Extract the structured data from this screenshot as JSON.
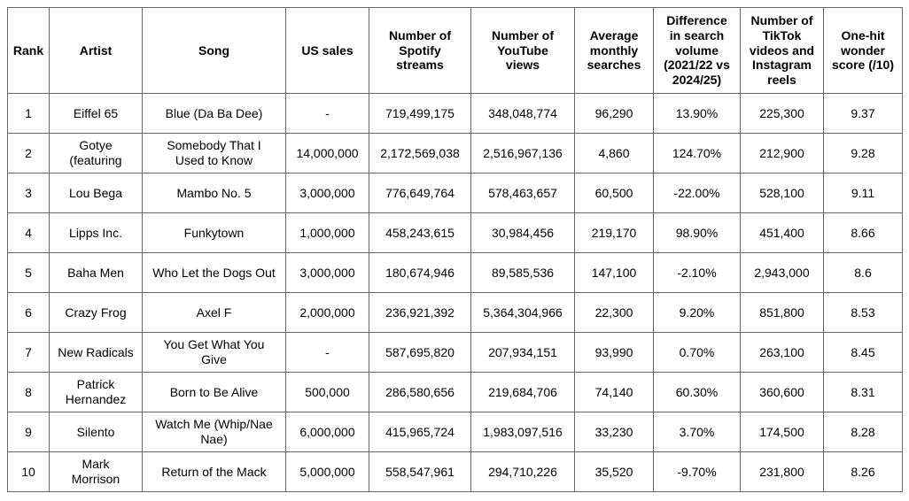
{
  "colors": {
    "border": "#666666",
    "text": "#000000",
    "background": "#ffffff"
  },
  "table": {
    "column_keys": [
      "rank",
      "artist",
      "song",
      "us-sales",
      "spotify-streams",
      "youtube-views",
      "monthly-searches",
      "search-volume-diff",
      "tiktok-instagram-count",
      "one-hit-score"
    ],
    "headers": [
      "Rank",
      "Artist",
      "Song",
      "US sales",
      "Number of\nSpotify\nstreams",
      "Number of\nYouTube\nviews",
      "Average\nmonthly\nsearches",
      "Difference\nin search\nvolume\n(2021/22 vs\n2024/25)",
      "Number of\nTikTok\nvideos and\nInstagram\nreels",
      "One-hit\nwonder\nscore (/10)"
    ],
    "rows": [
      [
        "1",
        "Eiffel 65",
        "Blue (Da Ba Dee)",
        "-",
        "719,499,175",
        "348,048,774",
        "96,290",
        "13.90%",
        "225,300",
        "9.37"
      ],
      [
        "2",
        "Gotye\n(featuring",
        "Somebody That I\nUsed to Know",
        "14,000,000",
        "2,172,569,038",
        "2,516,967,136",
        "4,860",
        "124.70%",
        "212,900",
        "9.28"
      ],
      [
        "3",
        "Lou Bega",
        "Mambo No. 5",
        "3,000,000",
        "776,649,764",
        "578,463,657",
        "60,500",
        "-22.00%",
        "528,100",
        "9.11"
      ],
      [
        "4",
        "Lipps Inc.",
        "Funkytown",
        "1,000,000",
        "458,243,615",
        "30,984,456",
        "219,170",
        "98.90%",
        "451,400",
        "8.66"
      ],
      [
        "5",
        "Baha Men",
        "Who Let the Dogs Out",
        "3,000,000",
        "180,674,946",
        "89,585,536",
        "147,100",
        "-2.10%",
        "2,943,000",
        "8.6"
      ],
      [
        "6",
        "Crazy Frog",
        "Axel F",
        "2,000,000",
        "236,921,392",
        "5,364,304,966",
        "22,300",
        "9.20%",
        "851,800",
        "8.53"
      ],
      [
        "7",
        "New Radicals",
        "You Get What You\nGive",
        "-",
        "587,695,820",
        "207,934,151",
        "93,990",
        "0.70%",
        "263,100",
        "8.45"
      ],
      [
        "8",
        "Patrick\nHernandez",
        "Born to Be Alive",
        "500,000",
        "286,580,656",
        "219,684,706",
        "74,140",
        "60.30%",
        "360,600",
        "8.31"
      ],
      [
        "9",
        "Silento",
        "Watch Me (Whip/Nae\nNae)",
        "6,000,000",
        "415,965,724",
        "1,983,097,516",
        "33,230",
        "3.70%",
        "174,500",
        "8.28"
      ],
      [
        "10",
        "Mark\nMorrison",
        "Return of the Mack",
        "5,000,000",
        "558,547,961",
        "294,710,226",
        "35,520",
        "-9.70%",
        "231,800",
        "8.26"
      ]
    ]
  },
  "chart_data": {
    "type": "table",
    "columns": [
      "Rank",
      "Artist",
      "Song",
      "US sales",
      "Number of Spotify streams",
      "Number of YouTube views",
      "Average monthly searches",
      "Difference in search volume (2021/22 vs 2024/25)",
      "Number of TikTok videos and Instagram reels",
      "One-hit wonder score (/10)"
    ],
    "rows": [
      [
        1,
        "Eiffel 65",
        "Blue (Da Ba Dee)",
        null,
        719499175,
        348048774,
        96290,
        "13.90%",
        225300,
        9.37
      ],
      [
        2,
        "Gotye (featuring",
        "Somebody That I Used to Know",
        14000000,
        2172569038,
        2516967136,
        4860,
        "124.70%",
        212900,
        9.28
      ],
      [
        3,
        "Lou Bega",
        "Mambo No. 5",
        3000000,
        776649764,
        578463657,
        60500,
        "-22.00%",
        528100,
        9.11
      ],
      [
        4,
        "Lipps Inc.",
        "Funkytown",
        1000000,
        458243615,
        30984456,
        219170,
        "98.90%",
        451400,
        8.66
      ],
      [
        5,
        "Baha Men",
        "Who Let the Dogs Out",
        3000000,
        180674946,
        89585536,
        147100,
        "-2.10%",
        2943000,
        8.6
      ],
      [
        6,
        "Crazy Frog",
        "Axel F",
        2000000,
        236921392,
        5364304966,
        22300,
        "9.20%",
        851800,
        8.53
      ],
      [
        7,
        "New Radicals",
        "You Get What You Give",
        null,
        587695820,
        207934151,
        93990,
        "0.70%",
        263100,
        8.45
      ],
      [
        8,
        "Patrick Hernandez",
        "Born to Be Alive",
        500000,
        286580656,
        219684706,
        74140,
        "60.30%",
        360600,
        8.31
      ],
      [
        9,
        "Silento",
        "Watch Me (Whip/Nae Nae)",
        6000000,
        415965724,
        1983097516,
        33230,
        "3.70%",
        174500,
        8.28
      ],
      [
        10,
        "Mark Morrison",
        "Return of the Mack",
        5000000,
        558547961,
        294710226,
        35520,
        "-9.70%",
        231800,
        8.26
      ]
    ]
  }
}
